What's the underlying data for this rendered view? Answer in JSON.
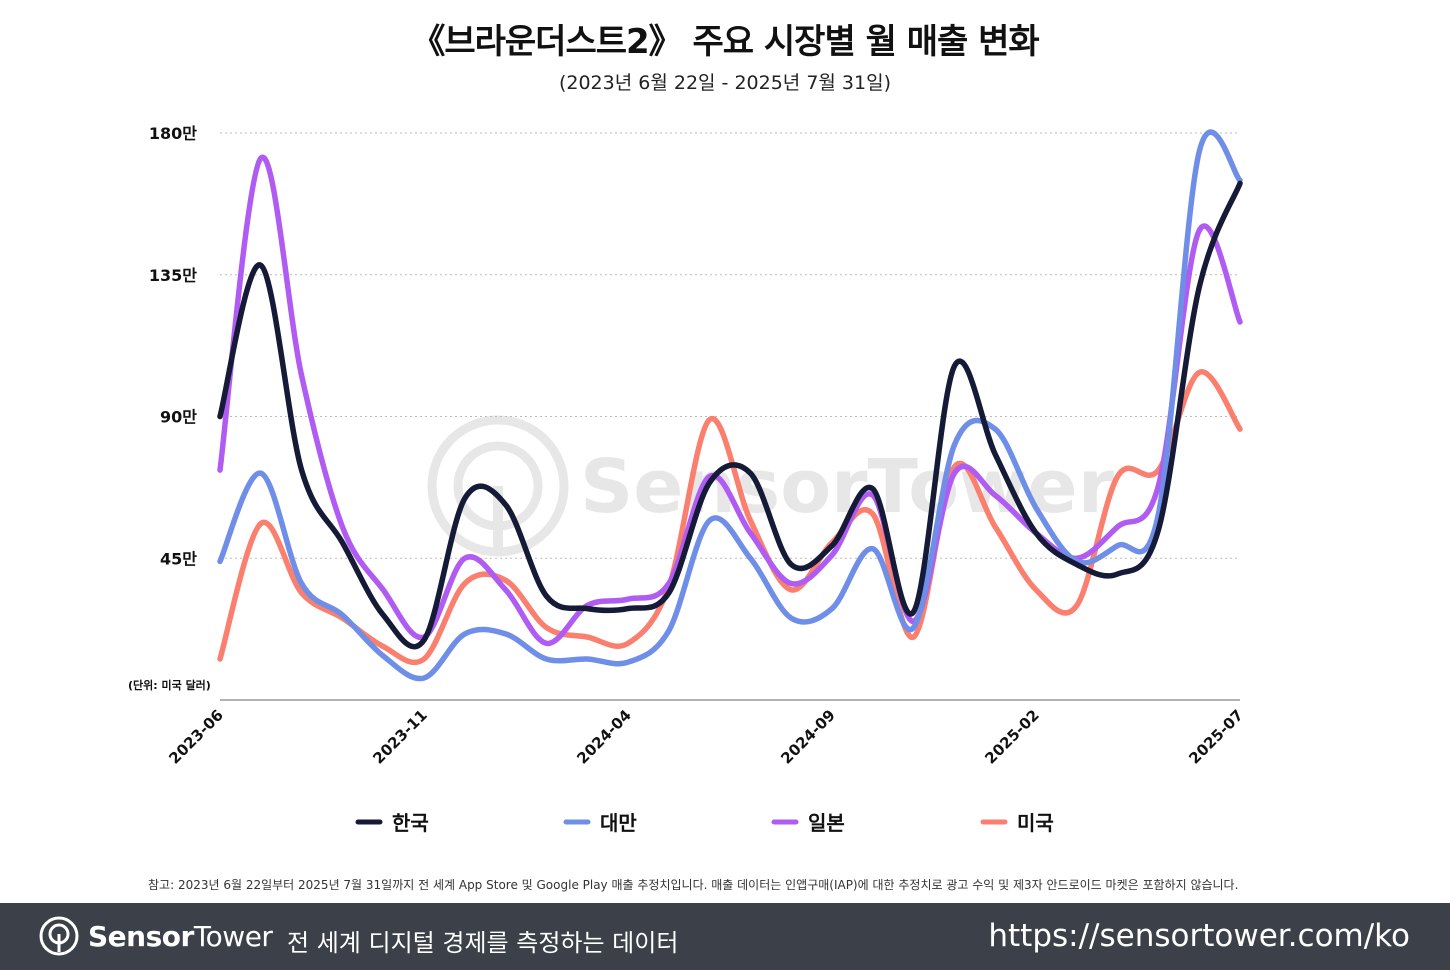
{
  "title": "《브라운더스트2》 주요 시장별 월 매출 변화",
  "subtitle": "(2023년 6월 22일 - 2025년 7월 31일)",
  "note": "참고: 2023년 6월 22일부터 2025년 7월 31일까지 전 세계 App Store 및 Google Play 매출 추정치입니다. 매출 데이터는 인앱구매(IAP)에 대한 추정치로 광고 수익 및 제3자 안드로이드 마켓은 포함하지 않습니다.",
  "watermark": "SensorTower",
  "footer": {
    "brand_bold": "Sensor",
    "brand_light": "Tower",
    "tagline": "전 세계 디지털 경제를 측정하는 데이터",
    "url": "https://sensortower.com/ko"
  },
  "chart_data": {
    "type": "line",
    "title": "《브라운더스트2》 주요 시장별 월 매출 변화",
    "subtitle": "(2023년 6월 22일 - 2025년 7월 31일)",
    "unit_label": "(단위: 미국 달러)",
    "ylim": [
      0,
      1800000
    ],
    "yticks": [
      450000,
      900000,
      1350000,
      1800000
    ],
    "ytick_labels": [
      "45만",
      "90만",
      "135만",
      "180만"
    ],
    "x": [
      "2023-06",
      "2023-07",
      "2023-08",
      "2023-09",
      "2023-10",
      "2023-11",
      "2023-12",
      "2024-01",
      "2024-02",
      "2024-03",
      "2024-04",
      "2024-05",
      "2024-06",
      "2024-07",
      "2024-08",
      "2024-09",
      "2024-10",
      "2024-11",
      "2024-12",
      "2025-01",
      "2025-02",
      "2025-03",
      "2025-04",
      "2025-05",
      "2025-06",
      "2025-07"
    ],
    "xtick_labels": [
      "2023-06",
      "2023-11",
      "2024-04",
      "2024-09",
      "2025-02",
      "2025-07"
    ],
    "xtick_indices": [
      0,
      5,
      10,
      15,
      20,
      25
    ],
    "grid": true,
    "legend_position": "bottom",
    "series": [
      {
        "name": "한국",
        "color": "#151a36",
        "values": [
          900000,
          1380000,
          730000,
          500000,
          270000,
          190000,
          640000,
          620000,
          330000,
          290000,
          290000,
          340000,
          690000,
          720000,
          430000,
          490000,
          670000,
          280000,
          1060000,
          780000,
          530000,
          430000,
          400000,
          540000,
          1310000,
          1640000
        ]
      },
      {
        "name": "대만",
        "color": "#6f8ee8",
        "values": [
          440000,
          720000,
          370000,
          270000,
          140000,
          70000,
          210000,
          210000,
          130000,
          130000,
          120000,
          220000,
          570000,
          450000,
          260000,
          290000,
          480000,
          230000,
          810000,
          860000,
          610000,
          440000,
          490000,
          590000,
          1740000,
          1650000
        ]
      },
      {
        "name": "일본",
        "color": "#b05cf2",
        "values": [
          730000,
          1720000,
          1030000,
          550000,
          350000,
          200000,
          450000,
          350000,
          180000,
          300000,
          320000,
          370000,
          710000,
          530000,
          370000,
          460000,
          650000,
          250000,
          720000,
          650000,
          530000,
          450000,
          550000,
          680000,
          1490000,
          1200000
        ]
      },
      {
        "name": "미국",
        "color": "#fa7f6e",
        "values": [
          130000,
          560000,
          340000,
          260000,
          170000,
          130000,
          370000,
          380000,
          230000,
          200000,
          180000,
          360000,
          890000,
          570000,
          350000,
          500000,
          590000,
          200000,
          740000,
          550000,
          350000,
          300000,
          710000,
          730000,
          1040000,
          860000
        ]
      }
    ]
  }
}
